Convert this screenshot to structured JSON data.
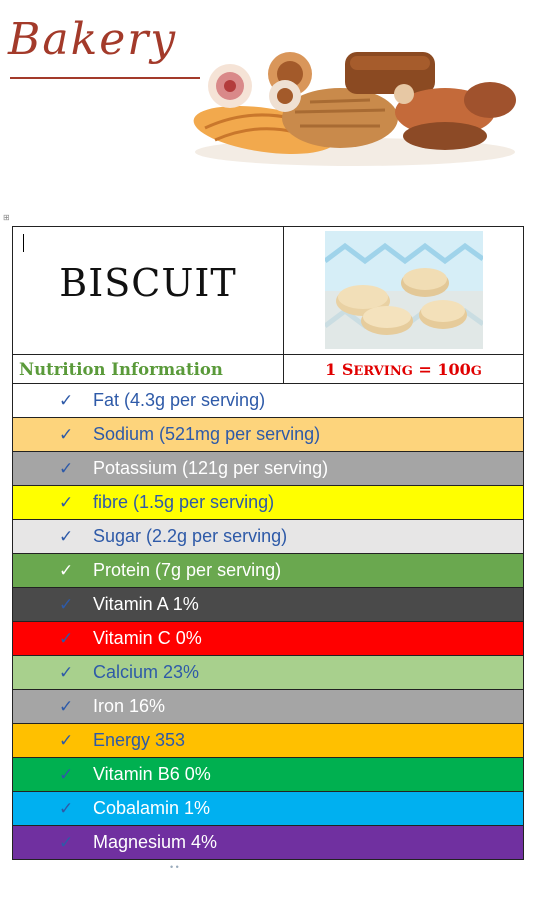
{
  "header": {
    "brand": "Bakery"
  },
  "table": {
    "title": "BISCUIT",
    "nutrition_label": "Nutrition Information",
    "serving_number": "1",
    "serving_word_first": "S",
    "serving_word_rest": "ERVING",
    "serving_value": "= 100",
    "serving_unit": "G"
  },
  "check_glyph": "✓",
  "nutrients": [
    {
      "label": "Fat (4.3g per serving)",
      "bg": "#ffffff",
      "color": "#2e5aa8",
      "tick": "#2e5aa8"
    },
    {
      "label": "Sodium (521mg per serving)",
      "bg": "#fdd47c",
      "color": "#2e5aa8",
      "tick": "#2e5aa8"
    },
    {
      "label": "Potassium (121g per serving)",
      "bg": "#a5a5a5",
      "color": "#ffffff",
      "tick": "#2e5aa8"
    },
    {
      "label": "fibre (1.5g per serving)",
      "bg": "#ffff00",
      "color": "#2e5aa8",
      "tick": "#2e5aa8"
    },
    {
      "label": "Sugar (2.2g per serving)",
      "bg": "#e7e6e6",
      "color": "#2e5aa8",
      "tick": "#2e5aa8"
    },
    {
      "label": "Protein (7g per serving)",
      "bg": "#6aa84f",
      "color": "#ffffff",
      "tick": "#ffffff"
    },
    {
      "label": "Vitamin A 1%",
      "bg": "#4a4a4a",
      "color": "#ffffff",
      "tick": "#2e5aa8"
    },
    {
      "label": "Vitamin C 0%",
      "bg": "#ff0000",
      "color": "#ffffff",
      "tick": "#2e5aa8"
    },
    {
      "label": "Calcium 23%",
      "bg": "#a8d08d",
      "color": "#2e5aa8",
      "tick": "#2e5aa8"
    },
    {
      "label": "Iron 16%",
      "bg": "#a5a5a5",
      "color": "#ffffff",
      "tick": "#2e5aa8"
    },
    {
      "label": "Energy 353",
      "bg": "#ffc000",
      "color": "#2e5aa8",
      "tick": "#2e5aa8"
    },
    {
      "label": "Vitamin B6 0%",
      "bg": "#00b050",
      "color": "#ffffff",
      "tick": "#2e5aa8"
    },
    {
      "label": "Cobalamin 1%",
      "bg": "#00b0f0",
      "color": "#ffffff",
      "tick": "#2e5aa8"
    },
    {
      "label": "Magnesium 4%",
      "bg": "#7030a0",
      "color": "#ffffff",
      "tick": "#2e5aa8"
    }
  ],
  "colors": {
    "brand": "#a33a2a",
    "nutrition_label": "#5a9a3a",
    "serving": "#e00000"
  },
  "icons": {
    "header_art": "bakery-pastries-illustration",
    "photo": "biscuits-photo"
  }
}
